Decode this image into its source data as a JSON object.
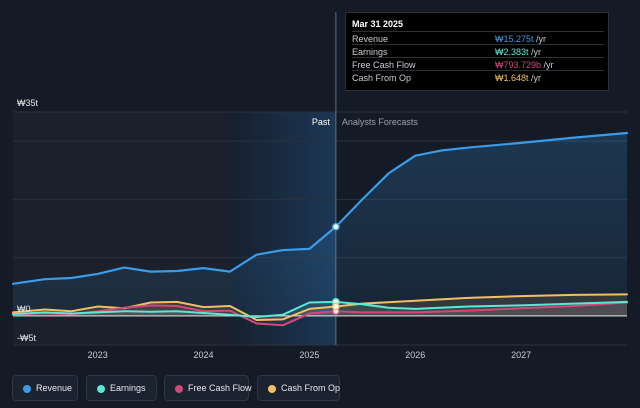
{
  "colors": {
    "revenue": "#3a9ce8",
    "earnings": "#5ce7d6",
    "free_cash_flow": "#d3487b",
    "cash_from_op": "#f2c063",
    "background": "#151b26"
  },
  "tooltip": {
    "date": "Mar 31 2025",
    "rows": [
      {
        "label": "Revenue",
        "value": "₩15.275t",
        "unit": " /yr",
        "color": "#3a9ce8"
      },
      {
        "label": "Earnings",
        "value": "₩2.383t",
        "unit": " /yr",
        "color": "#5ce7d6"
      },
      {
        "label": "Free Cash Flow",
        "value": "₩793.729b",
        "unit": " /yr",
        "color": "#d3487b"
      },
      {
        "label": "Cash From Op",
        "value": "₩1.648t",
        "unit": " /yr",
        "color": "#f2c063"
      }
    ]
  },
  "legend": [
    {
      "label": "Revenue",
      "color": "#3a9ce8",
      "icon": "dot-icon"
    },
    {
      "label": "Earnings",
      "color": "#5ce7d6",
      "icon": "dot-icon"
    },
    {
      "label": "Free Cash Flow",
      "color": "#d3487b",
      "icon": "dot-icon"
    },
    {
      "label": "Cash From Op",
      "color": "#f2c063",
      "icon": "dot-icon"
    }
  ],
  "chart_data": {
    "type": "line",
    "title": "",
    "xlabel": "",
    "ylabel": "",
    "x_ticks": [
      2023,
      2024,
      2025,
      2026,
      2027
    ],
    "y_tick_labels": [
      {
        "value": 35,
        "label": "₩35t"
      },
      {
        "value": 0,
        "label": "₩0"
      },
      {
        "value": -5,
        "label": "-₩5t"
      }
    ],
    "xlim": [
      2022.2,
      2028.0
    ],
    "ylim": [
      -5,
      35
    ],
    "past_label": "Past",
    "forecast_label": "Analysts Forecasts",
    "past_region": [
      2024.25,
      2025.25
    ],
    "divider_x": 2025.25,
    "grid": true,
    "legend_position": "bottom-left",
    "highlight_x": 2025.25,
    "series": [
      {
        "name": "Revenue",
        "color": "#3a9ce8",
        "x": [
          2022.2,
          2022.5,
          2022.75,
          2023.0,
          2023.25,
          2023.5,
          2023.75,
          2024.0,
          2024.25,
          2024.5,
          2024.75,
          2025.0,
          2025.25,
          2025.5,
          2025.75,
          2026.0,
          2026.25,
          2026.5,
          2027.0,
          2027.5,
          2028.0
        ],
        "y": [
          5.5,
          6.3,
          6.5,
          7.2,
          8.3,
          7.6,
          7.7,
          8.2,
          7.6,
          10.5,
          11.3,
          11.5,
          15.3,
          20.0,
          24.5,
          27.5,
          28.4,
          28.9,
          29.7,
          30.6,
          31.4
        ]
      },
      {
        "name": "Earnings",
        "color": "#5ce7d6",
        "x": [
          2022.2,
          2022.5,
          2022.75,
          2023.0,
          2023.25,
          2023.5,
          2023.75,
          2024.0,
          2024.25,
          2024.5,
          2024.75,
          2025.0,
          2025.25,
          2025.5,
          2025.75,
          2026.0,
          2026.5,
          2027.0,
          2027.5,
          2028.0
        ],
        "y": [
          0.3,
          0.6,
          0.4,
          0.6,
          0.8,
          0.7,
          0.8,
          0.5,
          0.2,
          -0.2,
          0.2,
          2.3,
          2.4,
          2.0,
          1.4,
          1.2,
          1.6,
          1.8,
          2.1,
          2.4
        ]
      },
      {
        "name": "Free Cash Flow",
        "color": "#d3487b",
        "x": [
          2022.2,
          2022.5,
          2022.75,
          2023.0,
          2023.25,
          2023.5,
          2023.75,
          2024.0,
          2024.25,
          2024.5,
          2024.75,
          2025.0,
          2025.25,
          2025.5,
          2026.0,
          2026.5,
          2027.0,
          2027.5,
          2028.0
        ],
        "y": [
          0.2,
          0.5,
          0.3,
          0.8,
          1.4,
          1.8,
          1.7,
          0.8,
          0.9,
          -1.3,
          -1.6,
          0.4,
          0.8,
          0.6,
          0.6,
          0.9,
          1.3,
          1.7,
          2.3
        ]
      },
      {
        "name": "Cash From Op",
        "color": "#f2c063",
        "x": [
          2022.2,
          2022.5,
          2022.75,
          2023.0,
          2023.25,
          2023.5,
          2023.75,
          2024.0,
          2024.25,
          2024.5,
          2024.75,
          2025.0,
          2025.25,
          2025.5,
          2026.0,
          2026.5,
          2027.0,
          2027.5,
          2028.0
        ],
        "y": [
          0.6,
          1.1,
          0.8,
          1.6,
          1.3,
          2.3,
          2.4,
          1.5,
          1.7,
          -0.7,
          -0.6,
          1.2,
          1.6,
          2.1,
          2.6,
          3.1,
          3.4,
          3.6,
          3.7
        ]
      }
    ]
  }
}
